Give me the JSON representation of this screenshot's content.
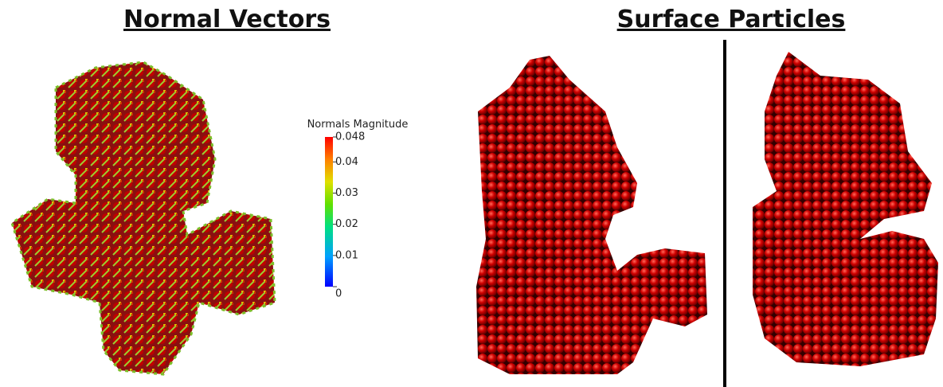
{
  "header": {
    "left_title": "Normal Vectors",
    "right_title": "Surface Particles"
  },
  "colorbar": {
    "title": "Normals Magnitude",
    "range": [
      0,
      0.048
    ],
    "ticks": [
      0.048,
      0.04,
      0.03,
      0.02,
      0.01,
      0
    ]
  }
}
